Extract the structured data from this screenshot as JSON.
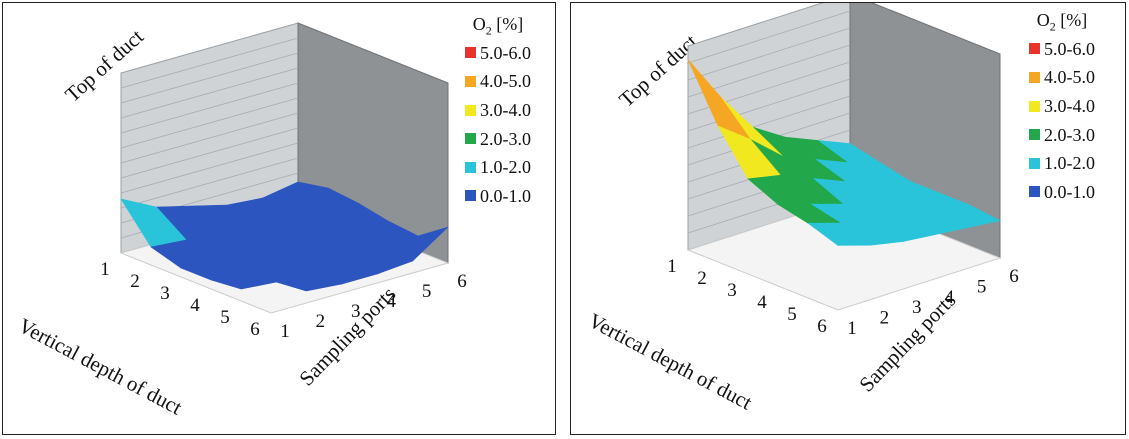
{
  "legend": {
    "title_o": "O",
    "title_sub": "2",
    "title_rest": " [%]",
    "items": [
      {
        "label": "5.0-6.0",
        "color": "#e8322c"
      },
      {
        "label": "4.0-5.0",
        "color": "#f5a623"
      },
      {
        "label": "3.0-4.0",
        "color": "#f2e81f"
      },
      {
        "label": "2.0-3.0",
        "color": "#22a84a"
      },
      {
        "label": "1.0-2.0",
        "color": "#29c4da"
      },
      {
        "label": "0.0-1.0",
        "color": "#2c55c0"
      }
    ]
  },
  "axes": {
    "top_label": "Top of duct",
    "depth_label": "Vertical depth of duct",
    "ports_label": "Sampling ports",
    "depth_ticks": [
      "1",
      "2",
      "3",
      "4",
      "5",
      "6"
    ],
    "port_ticks": [
      "1",
      "2",
      "3",
      "4",
      "5",
      "6"
    ]
  },
  "chart_data": [
    {
      "type": "surface",
      "x_name": "Vertical depth of duct",
      "y_name": "Sampling ports",
      "z_name": "O2 [%]",
      "z_range": [
        0,
        6
      ],
      "x": [
        1,
        2,
        3,
        4,
        5,
        6
      ],
      "y": [
        1,
        2,
        3,
        4,
        5,
        6
      ],
      "z": [
        [
          1.8,
          1.2,
          0.9,
          0.6,
          0.5,
          0.7
        ],
        [
          0.6,
          0.5,
          0.4,
          0.4,
          0.5,
          0.9
        ],
        [
          0.3,
          0.3,
          0.3,
          0.3,
          0.4,
          0.8
        ],
        [
          0.3,
          0.2,
          0.3,
          0.3,
          0.3,
          0.6
        ],
        [
          0.4,
          0.3,
          0.3,
          0.3,
          0.3,
          0.5
        ],
        [
          1.5,
          0.4,
          0.3,
          0.3,
          0.4,
          1.2
        ]
      ]
    },
    {
      "type": "surface",
      "x_name": "Vertical depth of duct",
      "y_name": "Sampling ports",
      "z_name": "O2 [%]",
      "z_range": [
        0,
        6
      ],
      "x": [
        1,
        2,
        3,
        4,
        5,
        6
      ],
      "y": [
        1,
        2,
        3,
        4,
        5,
        6
      ],
      "z": [
        [
          5.6,
          4.2,
          3.0,
          2.4,
          2.0,
          1.6
        ],
        [
          4.0,
          3.3,
          2.5,
          2.1,
          1.7,
          1.4
        ],
        [
          2.8,
          2.6,
          2.2,
          1.8,
          1.5,
          1.2
        ],
        [
          2.4,
          2.1,
          1.8,
          1.5,
          1.3,
          1.2
        ],
        [
          2.2,
          1.9,
          1.6,
          1.4,
          1.3,
          1.2
        ],
        [
          1.9,
          1.6,
          1.4,
          1.3,
          1.2,
          1.1
        ]
      ]
    }
  ]
}
